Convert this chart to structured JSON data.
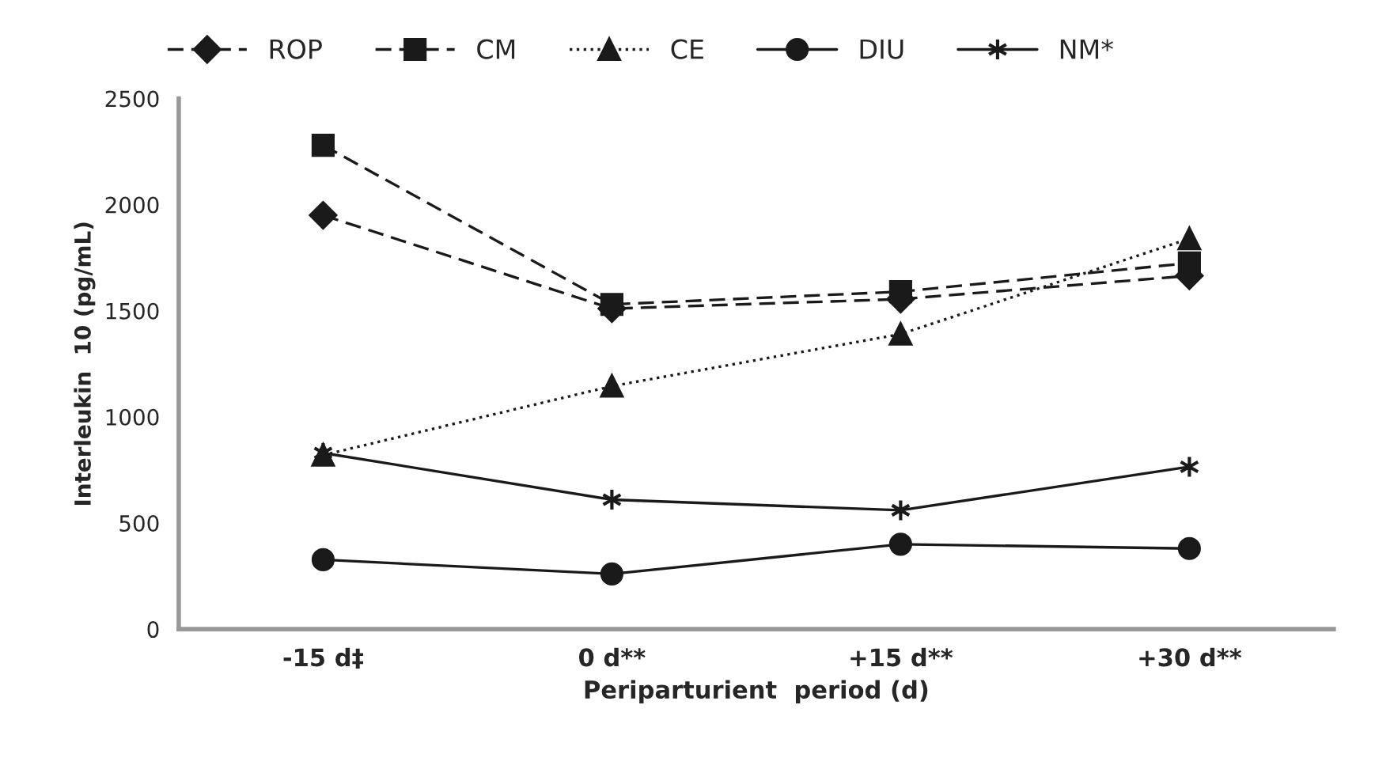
{
  "chart_data": {
    "type": "line",
    "xlabel": "Periparturient  period (d)",
    "ylabel": "Interleukin  10 (pg/mL)",
    "categories": [
      "-15 d‡",
      "0 d**",
      "+15 d**",
      "+30 d**"
    ],
    "ylim": [
      0,
      2500
    ],
    "yticks": [
      0,
      500,
      1000,
      1500,
      2000,
      2500
    ],
    "grid": false,
    "legend": "top",
    "series": [
      {
        "name": "ROP",
        "color": "#1a1a1a",
        "marker": "diamond",
        "line_style": "dashed",
        "values": [
          1950,
          1510,
          1555,
          1665
        ]
      },
      {
        "name": "CM",
        "color": "#1a1a1a",
        "marker": "square",
        "line_style": "dashed",
        "values": [
          2280,
          1530,
          1590,
          1725
        ]
      },
      {
        "name": "CE",
        "color": "#1a1a1a",
        "marker": "triangle",
        "line_style": "dotted",
        "values": [
          820,
          1145,
          1390,
          1840
        ]
      },
      {
        "name": "DIU",
        "color": "#1a1a1a",
        "marker": "circle",
        "line_style": "solid",
        "values": [
          327,
          260,
          400,
          380
        ]
      },
      {
        "name": "NM*",
        "color": "#1a1a1a",
        "marker": "cross",
        "line_style": "solid",
        "values": [
          830,
          610,
          560,
          765
        ]
      }
    ]
  }
}
